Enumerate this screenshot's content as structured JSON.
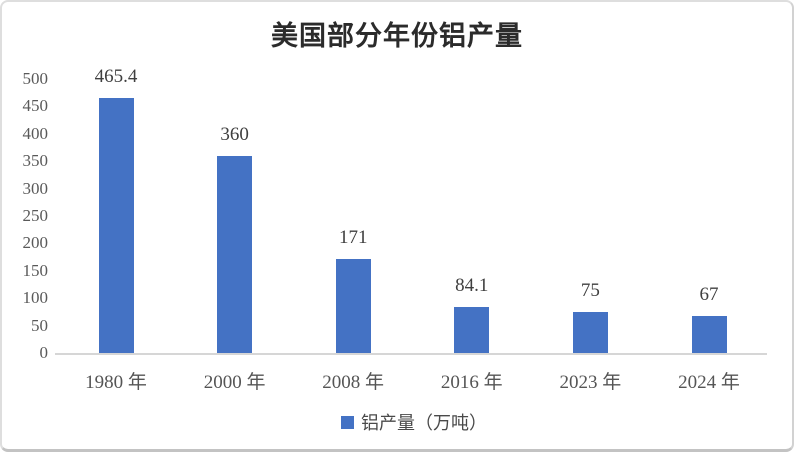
{
  "chart_data": {
    "type": "bar",
    "title": "美国部分年份铝产量",
    "categories": [
      "1980 年",
      "2000 年",
      "2008 年",
      "2016 年",
      "2023 年",
      "2024 年"
    ],
    "values": [
      465.4,
      360,
      171,
      84.1,
      75,
      67
    ],
    "value_labels": [
      "465.4",
      "360",
      "171",
      "84.1",
      "75",
      "67"
    ],
    "series_name": "铝产量（万吨）",
    "legend": {
      "label": "铝产量（万吨）",
      "position": "bottom",
      "swatch_icon": "blue-square-icon"
    },
    "xlabel": "",
    "ylabel": "",
    "ylim": [
      0,
      500
    ],
    "ytick_step": 50,
    "yticks": [
      0,
      50,
      100,
      150,
      200,
      250,
      300,
      350,
      400,
      450,
      500
    ],
    "grid": false,
    "data_labels_shown": true,
    "colors": {
      "bar": "#4472C4",
      "title_text": "#2b2b2b",
      "data_label_text": "#3f3f3f",
      "axis_tick_text": "#595959",
      "category_text": "#555555",
      "axis_line": "#d6d6d6",
      "card_border": "#c3c3c3",
      "background": "#ffffff"
    }
  }
}
